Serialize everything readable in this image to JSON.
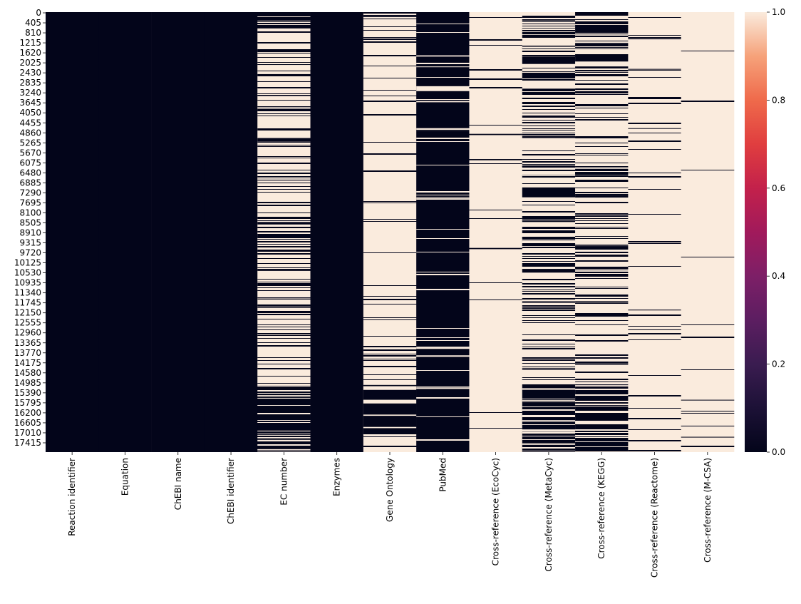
{
  "chart_data": {
    "type": "heatmap",
    "title": "",
    "xlabel": "",
    "ylabel": "",
    "columns": [
      "Reaction identifier",
      "Equation",
      "ChEBI name",
      "ChEBI identifier",
      "EC number",
      "Enzymes",
      "Gene Ontology",
      "PubMed",
      "Cross-reference (EcoCyc)",
      "Cross-reference (MetaCyc)",
      "Cross-reference (KEGG)",
      "Cross-reference (Reactome)",
      "Cross-reference (M-CSA)"
    ],
    "y_ticks": [
      0,
      405,
      810,
      1215,
      1620,
      2025,
      2430,
      2835,
      3240,
      3645,
      4050,
      4455,
      4860,
      5265,
      5670,
      6075,
      6480,
      6885,
      7290,
      7695,
      8100,
      8505,
      8910,
      9315,
      9720,
      10125,
      10530,
      10935,
      11340,
      11745,
      12150,
      12555,
      12960,
      13365,
      13770,
      14175,
      14580,
      14985,
      15390,
      15795,
      16200,
      16605,
      17010,
      17415
    ],
    "n_rows": 17820,
    "value_range": [
      0.0,
      1.0
    ],
    "colorbar_ticks": [
      "0.0",
      "0.2",
      "0.4",
      "0.6",
      "0.8",
      "1.0"
    ],
    "colors": {
      "low": "#03051a",
      "high": "#faebdd"
    },
    "columns_data": [
      {
        "base": 0,
        "flips": []
      },
      {
        "base": 0,
        "flips": []
      },
      {
        "base": 0,
        "flips": []
      },
      {
        "base": 0,
        "flips": []
      },
      {
        "base": 0,
        "flips": [
          [
            660,
            1950
          ],
          [
            2150,
            2500
          ],
          [
            2800,
            15130
          ],
          [
            16950,
            16990
          ],
          [
            17700,
            17740
          ]
        ],
        "alt_runs": [
          [
            1950,
            2150,
            1
          ],
          [
            2500,
            2800,
            1
          ],
          [
            3300,
            3400,
            0
          ],
          [
            5100,
            5250,
            0
          ],
          [
            6700,
            6820,
            0
          ],
          [
            8500,
            8600,
            0
          ],
          [
            10400,
            10480,
            0
          ],
          [
            11600,
            11650,
            0
          ]
        ]
      },
      {
        "base": 0,
        "flips": []
      },
      {
        "base": 1,
        "flips": [
          [
            0,
            60
          ],
          [
            150,
            200
          ],
          [
            15100,
            17100
          ]
        ],
        "alt_runs": [
          [
            15150,
            15300,
            1
          ],
          [
            15700,
            15850,
            1
          ],
          [
            16300,
            16350,
            1
          ],
          [
            16800,
            16850,
            1
          ]
        ]
      },
      {
        "base": 0,
        "flips": [
          [
            1750,
            1800
          ],
          [
            2200,
            2230
          ],
          [
            3000,
            3200
          ],
          [
            3600,
            3650
          ],
          [
            4700,
            4800
          ],
          [
            13550,
            13640
          ],
          [
            13900,
            13960
          ],
          [
            15200,
            15260
          ]
        ]
      },
      {
        "base": 1,
        "flips": [
          [
            4930,
            4980
          ],
          [
            5950,
            6000
          ],
          [
            9550,
            9600
          ]
        ]
      },
      {
        "base": 1,
        "flips": [
          [
            640,
            900
          ],
          [
            1400,
            1500
          ],
          [
            1800,
            2100
          ],
          [
            2400,
            2700
          ],
          [
            3100,
            3350
          ],
          [
            4900,
            5100
          ],
          [
            6600,
            6750
          ],
          [
            7100,
            7500
          ],
          [
            8300,
            8500
          ],
          [
            9200,
            9300
          ],
          [
            10400,
            10550
          ],
          [
            11700,
            11800
          ],
          [
            15130,
            16900
          ],
          [
            17000,
            17820
          ]
        ]
      },
      {
        "base": 1,
        "flips": [
          [
            0,
            900
          ],
          [
            1250,
            1500
          ],
          [
            1800,
            2000
          ],
          [
            2200,
            2400
          ],
          [
            3200,
            3350
          ],
          [
            6500,
            6600
          ],
          [
            7300,
            7450
          ],
          [
            9400,
            9500
          ],
          [
            15130,
            17820
          ]
        ]
      },
      {
        "base": 1,
        "flips": [
          [
            1050,
            1100
          ],
          [
            2300,
            2330
          ],
          [
            4700,
            4720
          ],
          [
            12050,
            12080
          ],
          [
            12850,
            12880
          ]
        ]
      },
      {
        "base": 1,
        "flips": [
          [
            15700,
            15730
          ],
          [
            16150,
            16180
          ],
          [
            16750,
            16780
          ],
          [
            17200,
            17230
          ]
        ]
      }
    ],
    "stripe_density": [
      0,
      0,
      0,
      0,
      0.22,
      0,
      0.05,
      0.04,
      0.03,
      0.2,
      0.2,
      0.04,
      0.01
    ]
  }
}
